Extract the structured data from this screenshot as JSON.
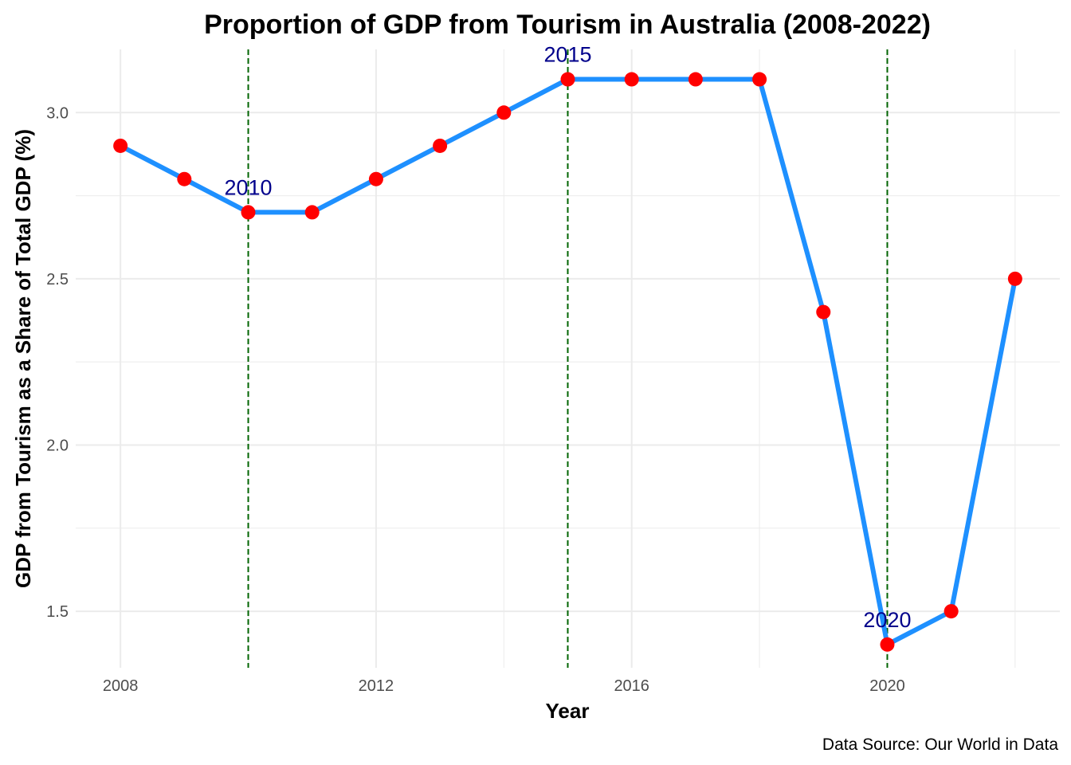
{
  "chart_data": {
    "type": "line",
    "title": "Proportion of GDP from Tourism in Australia (2008-2022)",
    "xlabel": "Year",
    "ylabel": "GDP from Tourism as a Share of Total GDP (%)",
    "caption": "Data Source: Our World in Data",
    "x": [
      2008,
      2009,
      2010,
      2011,
      2012,
      2013,
      2014,
      2015,
      2016,
      2017,
      2018,
      2019,
      2020,
      2021,
      2022
    ],
    "series": [
      {
        "values": [
          2.9,
          2.8,
          2.7,
          2.7,
          2.8,
          2.9,
          3.0,
          3.1,
          3.1,
          3.1,
          3.1,
          2.4,
          1.4,
          1.5,
          2.5
        ]
      }
    ],
    "xlim": [
      2007.3,
      2022.7
    ],
    "ylim": [
      1.33,
      3.19
    ],
    "x_ticks": [
      2008,
      2012,
      2016,
      2020
    ],
    "x_tick_labels": [
      "2008",
      "2012",
      "2016",
      "2020"
    ],
    "y_ticks": [
      1.5,
      2.0,
      2.5,
      3.0
    ],
    "y_tick_labels": [
      "1.5",
      "2.0",
      "2.5",
      "3.0"
    ],
    "vlines": [
      2010,
      2015,
      2020
    ],
    "annotations": [
      {
        "x": 2010,
        "y": 2.7,
        "text": "2010"
      },
      {
        "x": 2015,
        "y": 3.1,
        "text": "2015"
      },
      {
        "x": 2020,
        "y": 1.4,
        "text": "2020"
      }
    ],
    "grid": true,
    "colors": {
      "line": "#1e90ff",
      "points": "#ff0000",
      "vlines": "#006400",
      "annotations": "#00008b",
      "grid": "#ebebeb"
    }
  }
}
